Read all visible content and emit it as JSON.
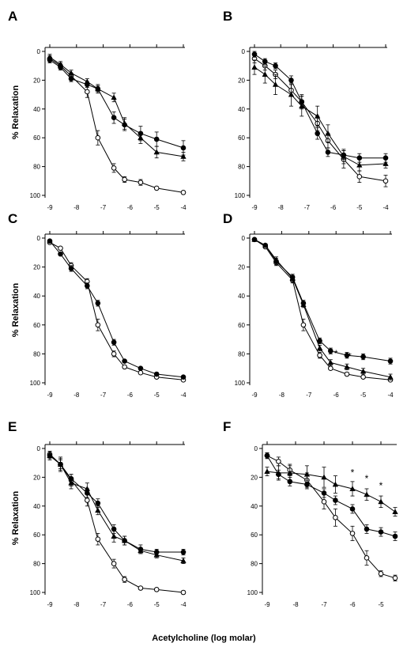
{
  "figure": {
    "xlabel": "Acetylcholine (log molar)"
  },
  "chart_data": [
    {
      "panel": "A",
      "type": "line",
      "ylabel": "% Relaxation",
      "xlim": [
        -9,
        -4
      ],
      "ylim": [
        0,
        100
      ],
      "y_inverted": true,
      "xticks": [
        -9,
        -8,
        -7,
        -6,
        -5,
        -4
      ],
      "yticks": [
        0,
        20,
        40,
        60,
        80,
        100
      ],
      "series": [
        {
          "marker": "open-circle",
          "x": [
            -9,
            -8.6,
            -8.2,
            -7.6,
            -7.2,
            -6.6,
            -6.2,
            -5.6,
            -5,
            -4
          ],
          "y": [
            5,
            10,
            17,
            28,
            60,
            81,
            89,
            91,
            95,
            98
          ],
          "err": [
            2,
            2,
            2,
            4,
            5,
            3,
            2,
            2,
            1,
            1
          ]
        },
        {
          "marker": "filled-circle",
          "x": [
            -9,
            -8.6,
            -8.2,
            -7.6,
            -7.2,
            -6.6,
            -6.2,
            -5.6,
            -5,
            -4
          ],
          "y": [
            6,
            11,
            19,
            23,
            26,
            46,
            51,
            57,
            61,
            67
          ],
          "err": [
            2,
            2,
            2,
            2,
            3,
            4,
            4,
            5,
            5,
            5
          ]
        },
        {
          "marker": "filled-triangle",
          "x": [
            -9,
            -8.6,
            -8.2,
            -7.6,
            -7.2,
            -6.6,
            -6.2,
            -5.6,
            -5,
            -4
          ],
          "y": [
            4,
            9,
            15,
            21,
            26,
            32,
            50,
            60,
            70,
            73
          ],
          "err": [
            2,
            2,
            2,
            2,
            2,
            3,
            4,
            4,
            4,
            3
          ]
        }
      ],
      "annotations": []
    },
    {
      "panel": "B",
      "type": "line",
      "ylabel": "",
      "xlim": [
        -9,
        -4
      ],
      "ylim": [
        0,
        100
      ],
      "y_inverted": true,
      "xticks": [
        -9,
        -8,
        -7,
        -6,
        -5,
        -4
      ],
      "yticks": [
        0,
        20,
        40,
        60,
        80,
        100
      ],
      "series": [
        {
          "marker": "open-circle",
          "x": [
            -9,
            -8.6,
            -8.2,
            -7.6,
            -7.2,
            -6.6,
            -6.2,
            -5.6,
            -5,
            -4
          ],
          "y": [
            5,
            10,
            16,
            27,
            35,
            50,
            62,
            75,
            87,
            90
          ],
          "err": [
            3,
            3,
            3,
            4,
            5,
            5,
            5,
            6,
            4,
            4
          ]
        },
        {
          "marker": "filled-circle",
          "x": [
            -9,
            -8.6,
            -8.2,
            -7.6,
            -7.2,
            -6.6,
            -6.2,
            -5.6,
            -5,
            -4
          ],
          "y": [
            2,
            7,
            10,
            20,
            35,
            57,
            70,
            72,
            74,
            74
          ],
          "err": [
            2,
            2,
            2,
            3,
            4,
            4,
            3,
            3,
            3,
            3
          ]
        },
        {
          "marker": "filled-triangle",
          "x": [
            -9,
            -8.6,
            -8.2,
            -7.6,
            -7.2,
            -6.6,
            -6.2,
            -5.6,
            -5,
            -4
          ],
          "y": [
            11,
            16,
            23,
            30,
            38,
            45,
            57,
            73,
            79,
            78
          ],
          "err": [
            5,
            6,
            7,
            8,
            7,
            7,
            6,
            5,
            4,
            3
          ]
        }
      ],
      "annotations": []
    },
    {
      "panel": "C",
      "type": "line",
      "ylabel": "% Relaxation",
      "xlim": [
        -9,
        -4
      ],
      "ylim": [
        0,
        100
      ],
      "y_inverted": true,
      "xticks": [
        -9,
        -8,
        -7,
        -6,
        -5,
        -4
      ],
      "yticks": [
        0,
        20,
        40,
        60,
        80,
        100
      ],
      "series": [
        {
          "marker": "open-circle",
          "x": [
            -9,
            -8.6,
            -8.2,
            -7.6,
            -7.2,
            -6.6,
            -6.2,
            -5.6,
            -5,
            -4
          ],
          "y": [
            3,
            7,
            19,
            30,
            60,
            80,
            89,
            93,
            96,
            98
          ],
          "err": [
            1,
            1,
            2,
            2,
            4,
            2,
            1,
            1,
            1,
            1
          ]
        },
        {
          "marker": "filled-circle",
          "x": [
            -9,
            -8.6,
            -8.2,
            -7.6,
            -7.2,
            -6.6,
            -6.2,
            -5.6,
            -5,
            -4
          ],
          "y": [
            2,
            11,
            21,
            33,
            45,
            72,
            85,
            90,
            94,
            96
          ],
          "err": [
            1,
            1,
            2,
            2,
            2,
            2,
            1,
            1,
            1,
            1
          ]
        }
      ],
      "annotations": []
    },
    {
      "panel": "D",
      "type": "line",
      "ylabel": "",
      "xlim": [
        -9,
        -4
      ],
      "ylim": [
        0,
        100
      ],
      "y_inverted": true,
      "xticks": [
        -9,
        -8,
        -7,
        -6,
        -5,
        -4
      ],
      "yticks": [
        0,
        20,
        40,
        60,
        80,
        100
      ],
      "series": [
        {
          "marker": "open-circle",
          "x": [
            -9,
            -8.6,
            -8.2,
            -7.6,
            -7.2,
            -6.6,
            -6.2,
            -5.6,
            -5,
            -4
          ],
          "y": [
            1,
            6,
            17,
            29,
            60,
            81,
            90,
            94,
            96,
            98
          ],
          "err": [
            1,
            1,
            2,
            2,
            4,
            2,
            1,
            1,
            1,
            1
          ]
        },
        {
          "marker": "filled-circle",
          "x": [
            -9,
            -8.6,
            -8.2,
            -7.6,
            -7.2,
            -6.6,
            -6.2,
            -5.6,
            -5,
            -4
          ],
          "y": [
            1,
            5,
            16,
            27,
            45,
            71,
            78,
            81,
            82,
            85
          ],
          "err": [
            1,
            1,
            2,
            2,
            2,
            2,
            2,
            2,
            2,
            2
          ]
        },
        {
          "marker": "filled-triangle",
          "x": [
            -9,
            -8.6,
            -8.2,
            -7.6,
            -7.2,
            -6.6,
            -6.2,
            -5.6,
            -5,
            -4
          ],
          "y": [
            1,
            5,
            15,
            28,
            46,
            76,
            86,
            89,
            92,
            96
          ],
          "err": [
            1,
            1,
            2,
            2,
            2,
            2,
            2,
            2,
            2,
            2
          ]
        }
      ],
      "annotations": [
        {
          "text": "*",
          "x": -6,
          "y": 82
        },
        {
          "text": "*",
          "x": -5.5,
          "y": 84
        },
        {
          "text": "*",
          "x": -5,
          "y": 86
        },
        {
          "text": "*",
          "x": -4,
          "y": 89
        }
      ]
    },
    {
      "panel": "E",
      "type": "line",
      "ylabel": "% Relaxation",
      "xlim": [
        -9,
        -4
      ],
      "ylim": [
        0,
        100
      ],
      "y_inverted": true,
      "xticks": [
        -9,
        -8,
        -7,
        -6,
        -5,
        -4
      ],
      "yticks": [
        0,
        20,
        40,
        60,
        80,
        100
      ],
      "series": [
        {
          "marker": "open-circle",
          "x": [
            -9,
            -8.6,
            -8.2,
            -7.6,
            -7.2,
            -6.6,
            -6.2,
            -5.6,
            -5,
            -4
          ],
          "y": [
            4,
            11,
            22,
            36,
            63,
            80,
            91,
            97,
            98,
            100
          ],
          "err": [
            2,
            5,
            4,
            4,
            4,
            3,
            2,
            1,
            1,
            1
          ]
        },
        {
          "marker": "filled-circle",
          "x": [
            -9,
            -8.6,
            -8.2,
            -7.6,
            -7.2,
            -6.6,
            -6.2,
            -5.6,
            -5,
            -4
          ],
          "y": [
            5,
            11,
            21,
            31,
            38,
            56,
            64,
            70,
            72,
            72
          ],
          "err": [
            2,
            3,
            3,
            3,
            3,
            3,
            3,
            3,
            2,
            2
          ]
        },
        {
          "marker": "filled-triangle",
          "x": [
            -9,
            -8.6,
            -8.2,
            -7.6,
            -7.2,
            -6.6,
            -6.2,
            -5.6,
            -5,
            -4
          ],
          "y": [
            5,
            11,
            24,
            28,
            43,
            61,
            64,
            71,
            74,
            78
          ],
          "err": [
            3,
            4,
            4,
            4,
            3,
            4,
            3,
            2,
            2,
            2
          ]
        }
      ],
      "annotations": []
    },
    {
      "panel": "F",
      "type": "line",
      "ylabel": "",
      "xlim": [
        -9,
        -4.5
      ],
      "ylim": [
        0,
        100
      ],
      "y_inverted": true,
      "xticks": [
        -9,
        -8,
        -7,
        -6,
        -5
      ],
      "yticks": [
        0,
        20,
        40,
        60,
        80,
        100
      ],
      "series": [
        {
          "marker": "open-circle",
          "x": [
            -9,
            -8.6,
            -8.2,
            -7.6,
            -7,
            -6.6,
            -6,
            -5.5,
            -5,
            -4.5
          ],
          "y": [
            5,
            9,
            15,
            22,
            37,
            48,
            59,
            76,
            87,
            90
          ],
          "err": [
            2,
            3,
            4,
            5,
            5,
            6,
            5,
            5,
            2,
            2
          ]
        },
        {
          "marker": "filled-circle",
          "x": [
            -9,
            -8.6,
            -8.2,
            -7.6,
            -7,
            -6.6,
            -6,
            -5.5,
            -5,
            -4.5
          ],
          "y": [
            5,
            18,
            23,
            25,
            31,
            36,
            42,
            56,
            58,
            61
          ],
          "err": [
            2,
            3,
            3,
            3,
            3,
            3,
            3,
            3,
            3,
            3
          ]
        },
        {
          "marker": "filled-triangle",
          "x": [
            -9,
            -8.6,
            -8.2,
            -7.6,
            -7,
            -6.6,
            -6,
            -5.5,
            -5,
            -4.5
          ],
          "y": [
            16,
            17,
            17,
            18,
            20,
            25,
            28,
            32,
            37,
            44
          ],
          "err": [
            3,
            5,
            5,
            6,
            7,
            6,
            5,
            4,
            4,
            3
          ]
        }
      ],
      "annotations": [
        {
          "text": "*",
          "x": -6,
          "y": 19
        },
        {
          "text": "*",
          "x": -5.5,
          "y": 23
        },
        {
          "text": "*",
          "x": -5,
          "y": 28
        }
      ]
    }
  ]
}
